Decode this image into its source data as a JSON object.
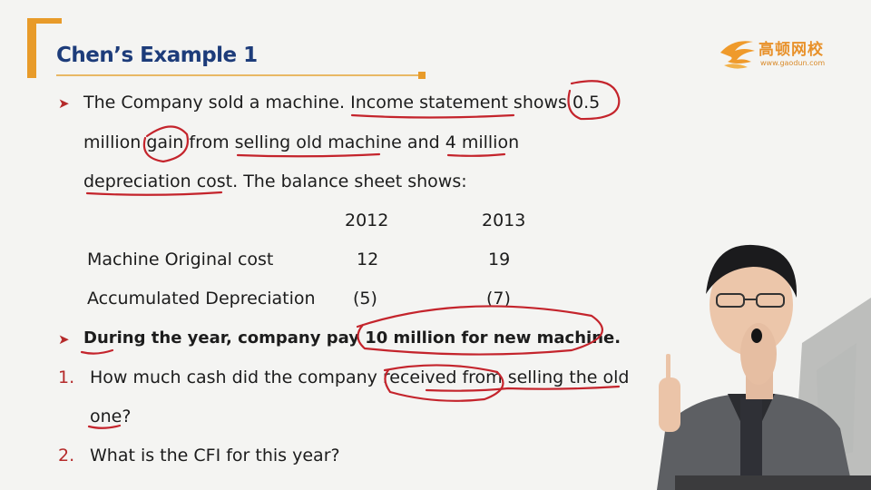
{
  "slide": {
    "title": "Chen’s Example 1",
    "logo": {
      "name": "高顿网校",
      "url": "www.gaodun.com"
    },
    "bullet1": {
      "line1": "The Company sold a machine. Income statement shows 0.5",
      "line2": "million gain from selling old machine and 4 million",
      "line3": "depreciation cost.  The balance sheet shows:"
    },
    "table": {
      "year1": "2012",
      "year2": "2013",
      "rows": [
        {
          "label": "Machine Original cost",
          "v2012": "12",
          "v2013": "19"
        },
        {
          "label": "Accumulated Depreciation",
          "v2012": "(5)",
          "v2013": "(7)"
        }
      ]
    },
    "bullet2": "During the year, company pay 10 million for new machine.",
    "questions": [
      {
        "num": "1.",
        "line1": "How much cash did the company received from selling the old",
        "line2": "one?"
      },
      {
        "num": "2.",
        "line1": "What is the CFI for this year?"
      }
    ]
  }
}
